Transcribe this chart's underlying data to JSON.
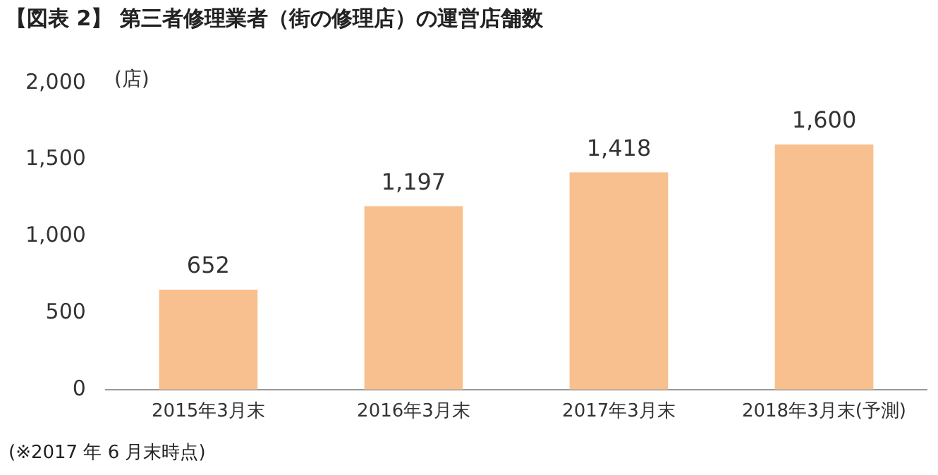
{
  "chart_data": {
    "type": "bar",
    "title": "【図表 2】 第三者修理業者（街の修理店）の運営店舗数",
    "ylabel": "(店)",
    "categories": [
      "2015年3月末",
      "2016年3月末",
      "2017年3月末",
      "2018年3月末(予測)"
    ],
    "values": [
      652,
      1197,
      1418,
      1600
    ],
    "color": "#f8c08f",
    "value_labels": [
      "652",
      "1,197",
      "1,418",
      "1,600"
    ],
    "ylim": [
      0,
      2000
    ],
    "yticks": [
      0,
      500,
      {
        "value": 1000,
        "label": "1,000"
      },
      {
        "value": 1500,
        "label": "1,500"
      },
      {
        "value": 2000,
        "label": "2,000"
      }
    ],
    "grid": false,
    "legend": false,
    "annotations": [
      "(※2017 年 6 月末時点)"
    ]
  }
}
